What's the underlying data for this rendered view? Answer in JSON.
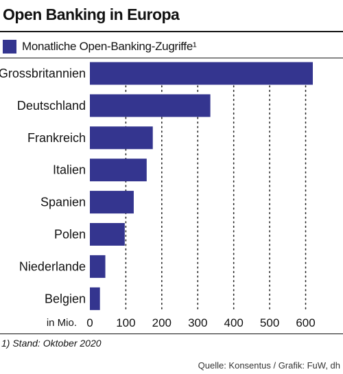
{
  "colors": {
    "bar": "#34358f",
    "text": "#111111",
    "grid": "#222222"
  },
  "chart_data": {
    "type": "bar",
    "orientation": "horizontal",
    "title": "Open Banking in Europa",
    "legend": {
      "label": "Monatliche Open-Banking-Zugriffe¹",
      "placement": "top-left"
    },
    "categories": [
      "Grossbritannien",
      "Deutschland",
      "Frankreich",
      "Italien",
      "Spanien",
      "Polen",
      "Niederlande",
      "Belgien"
    ],
    "series": [
      {
        "name": "Monatliche Open-Banking-Zugriffe¹",
        "values": [
          620,
          335,
          175,
          158,
          122,
          97,
          43,
          28
        ]
      }
    ],
    "xlabel": "in Mio.",
    "xlim": [
      0,
      620
    ],
    "xticks": [
      0,
      100,
      200,
      300,
      400,
      500,
      600
    ],
    "xtick_labels": [
      "0",
      "100",
      "200",
      "300",
      "400",
      "500",
      "600"
    ],
    "grid": "vertical dotted"
  },
  "footnote": "1) Stand: Oktober 2020",
  "source": "Quelle: Konsentus / Grafik: FuW, dh"
}
